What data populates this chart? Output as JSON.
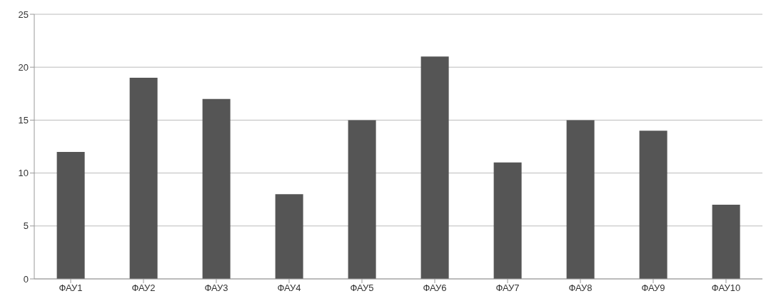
{
  "chart_data": {
    "type": "bar",
    "categories": [
      "ФАУ1",
      "ФАУ2",
      "ФАУ3",
      "ФАУ4",
      "ФАУ5",
      "ФАУ6",
      "ФАУ7",
      "ФАУ8",
      "ФАУ9",
      "ФАУ10"
    ],
    "values": [
      12,
      19,
      17,
      8,
      15,
      21,
      11,
      15,
      14,
      7
    ],
    "color": "#555555",
    "ylim": [
      0,
      25
    ],
    "yticks": [
      0,
      5,
      10,
      15,
      20,
      25
    ],
    "grid": "y"
  }
}
